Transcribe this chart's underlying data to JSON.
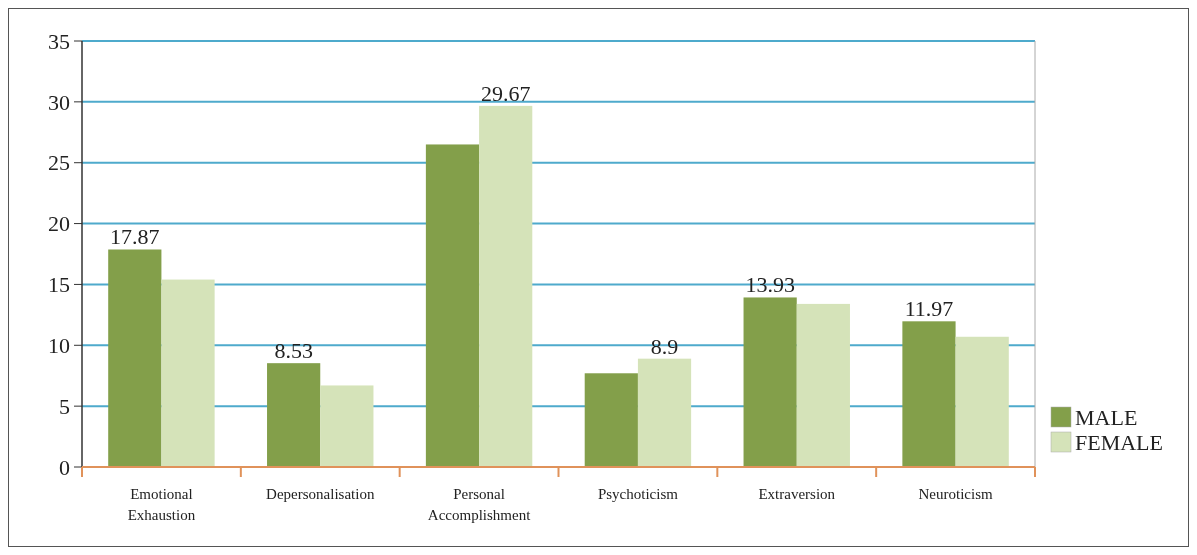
{
  "chart_data": {
    "type": "bar",
    "categories": [
      "Emotional Exhaustion",
      "Depersonalisation",
      "Personal Accomplishment",
      "Psychoticism",
      "Extraversion",
      "Neuroticism"
    ],
    "series": [
      {
        "name": "MALE",
        "color": "#839f4a",
        "values": [
          17.87,
          8.53,
          26.5,
          7.7,
          13.93,
          11.97
        ],
        "value_labels": [
          "17.87",
          "8.53",
          null,
          null,
          "13.93",
          "11.97"
        ]
      },
      {
        "name": "FEMALE",
        "color": "#d5e3b9",
        "values": [
          15.4,
          6.7,
          29.67,
          8.9,
          13.4,
          10.7
        ],
        "value_labels": [
          null,
          null,
          "29.67",
          "8.9",
          null,
          null
        ]
      }
    ],
    "ylim": [
      0,
      35
    ],
    "yticks": [
      0,
      5,
      10,
      15,
      20,
      25,
      30,
      35
    ],
    "grid": "y",
    "legend": "right"
  }
}
